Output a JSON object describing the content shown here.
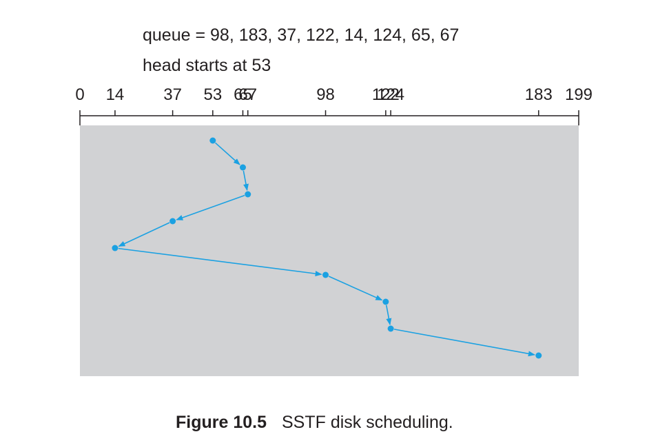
{
  "header": {
    "queue_line": "queue = 98, 183, 37, 122, 14, 124, 65, 67",
    "head_line": "head starts at 53"
  },
  "caption": {
    "figure_label": "Figure 10.5",
    "text": "SSTF disk scheduling."
  },
  "chart_data": {
    "type": "line",
    "title": "",
    "xlabel": "",
    "ylabel": "",
    "xlim": [
      0,
      199
    ],
    "tick_labels": [
      "0",
      "14",
      "37",
      "53",
      "65",
      "67",
      "98",
      "122",
      "124",
      "183",
      "199"
    ],
    "ticks": [
      0,
      14,
      37,
      53,
      65,
      67,
      98,
      122,
      124,
      183,
      199
    ],
    "series": [
      {
        "values": [
          53,
          65,
          67,
          37,
          14,
          98,
          122,
          124,
          183
        ]
      }
    ],
    "colors": {
      "path": "#1ba1e2",
      "area": "#d1d2d4",
      "axis": "#231f20"
    }
  }
}
